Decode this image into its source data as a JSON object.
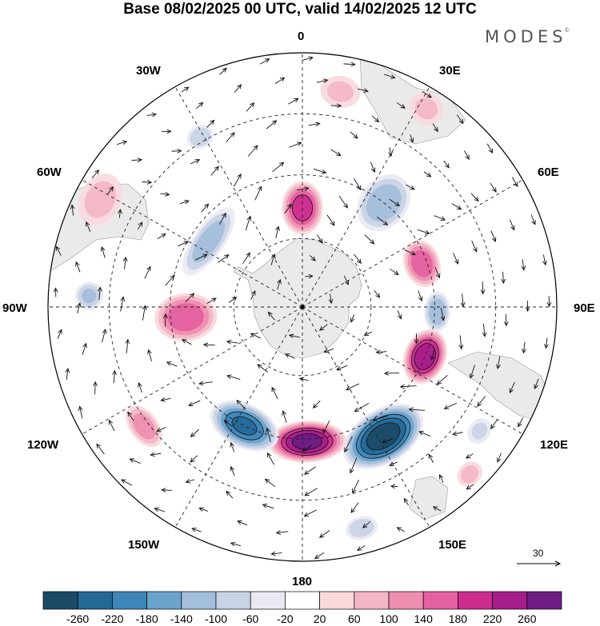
{
  "title": "Base 08/02/2025 00 UTC, valid 14/02/2025 12 UTC",
  "logo": "MODES",
  "logo_mark": "©",
  "longitude_labels": [
    "0",
    "30E",
    "60E",
    "90E",
    "120E",
    "150E",
    "180",
    "150W",
    "120W",
    "90W",
    "60W",
    "30W"
  ],
  "reference_vector_label": "30",
  "colorbar": {
    "colors": [
      "#1b4a66",
      "#246896",
      "#3d86b8",
      "#6aa3cc",
      "#a3bedb",
      "#c9d3e6",
      "#e9e9f2",
      "#ffffff",
      "#f9d9dc",
      "#f3b6c4",
      "#ee8db0",
      "#e5609f",
      "#cc2d8f",
      "#a51d8a",
      "#6d1d84"
    ],
    "tick_labels": [
      "-260",
      "-220",
      "-180",
      "-140",
      "-100",
      "-60",
      "-20",
      "20",
      "60",
      "100",
      "140",
      "180",
      "220",
      "260"
    ]
  },
  "field": {
    "anomalies": [
      {
        "lon": 0,
        "r": 0.39,
        "value": 200,
        "sx": 0.085,
        "sy": 0.11
      },
      {
        "lon": 38,
        "r": 0.52,
        "value": -130,
        "sx": 0.1,
        "sy": 0.13
      },
      {
        "lon": 70,
        "r": 0.5,
        "value": 170,
        "sx": 0.1,
        "sy": 0.075
      },
      {
        "lon": 92,
        "r": 0.53,
        "value": -130,
        "sx": 0.085,
        "sy": 0.055
      },
      {
        "lon": 112,
        "r": 0.52,
        "value": 250,
        "sx": 0.115,
        "sy": 0.085
      },
      {
        "lon": 148,
        "r": 0.6,
        "value": -280,
        "sx": 0.18,
        "sy": 0.11
      },
      {
        "lon": 178,
        "r": 0.53,
        "value": 270,
        "sx": 0.16,
        "sy": 0.085
      },
      {
        "lon": -154,
        "r": 0.52,
        "value": -220,
        "sx": 0.15,
        "sy": 0.09
      },
      {
        "lon": -127,
        "r": 0.78,
        "value": 120,
        "sx": 0.1,
        "sy": 0.06
      },
      {
        "lon": -95,
        "r": 0.46,
        "value": 170,
        "sx": 0.1,
        "sy": 0.13
      },
      {
        "lon": -87,
        "r": 0.84,
        "value": -100,
        "sx": 0.06,
        "sy": 0.06
      },
      {
        "lon": -55,
        "r": 0.45,
        "value": -120,
        "sx": 0.17,
        "sy": 0.065
      },
      {
        "lon": -62,
        "r": 0.9,
        "value": 70,
        "sx": 0.12,
        "sy": 0.09
      },
      {
        "lon": -31,
        "r": 0.78,
        "value": -90,
        "sx": 0.06,
        "sy": 0.05
      },
      {
        "lon": 10,
        "r": 0.86,
        "value": 60,
        "sx": 0.09,
        "sy": 0.07
      },
      {
        "lon": 32,
        "r": 0.92,
        "value": 60,
        "sx": 0.08,
        "sy": 0.07
      },
      {
        "lon": 165,
        "r": 0.9,
        "value": -90,
        "sx": 0.07,
        "sy": 0.05
      },
      {
        "lon": 125,
        "r": 0.85,
        "value": -60,
        "sx": 0.06,
        "sy": 0.05
      },
      {
        "lon": 135,
        "r": 0.93,
        "value": 70,
        "sx": 0.06,
        "sy": 0.05
      }
    ]
  }
}
